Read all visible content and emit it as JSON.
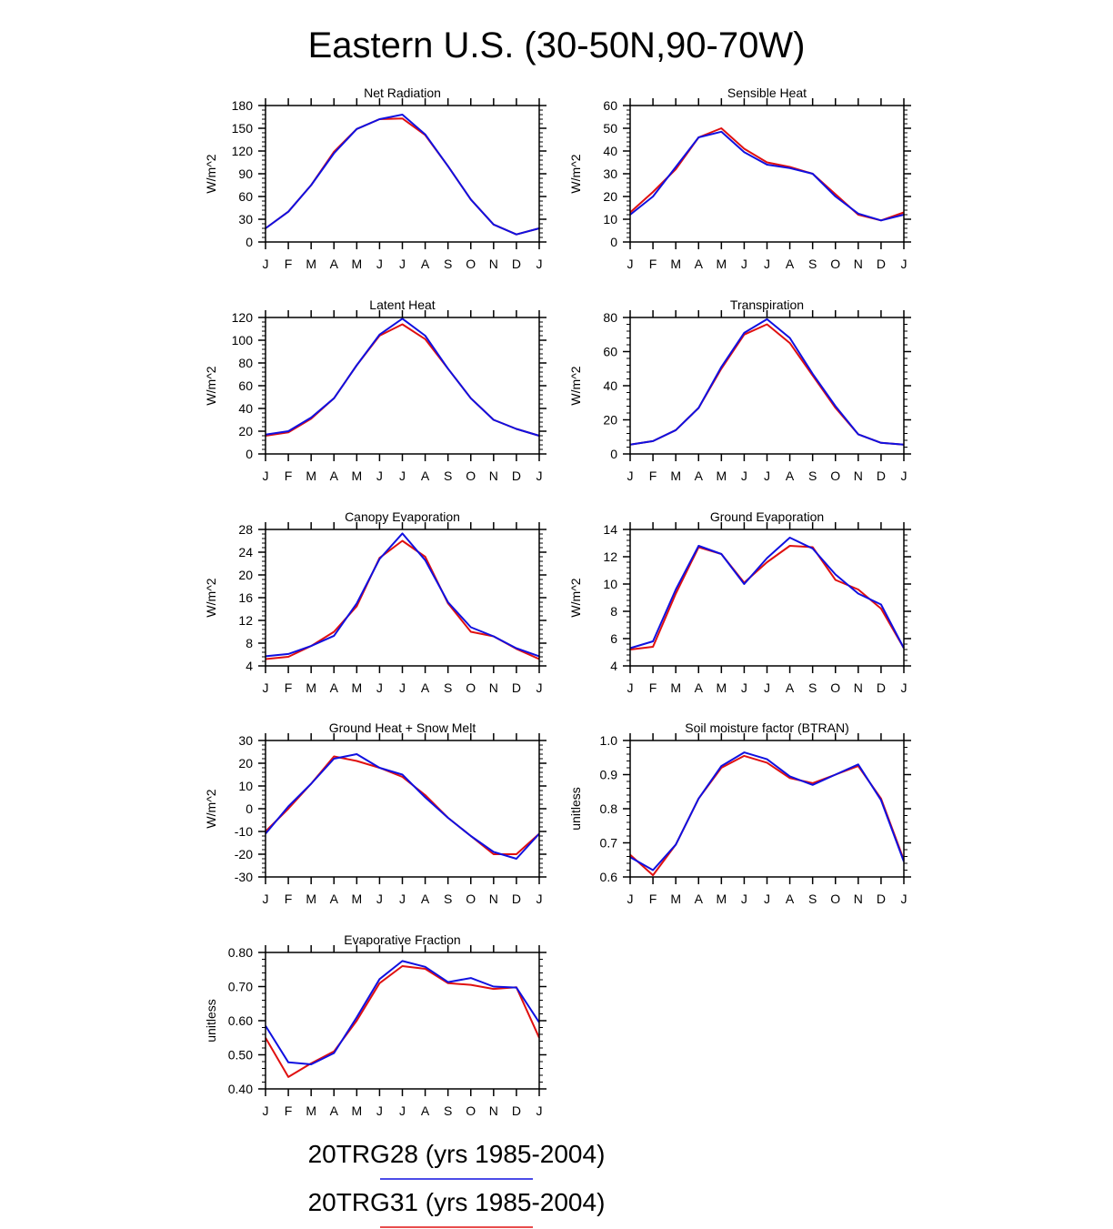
{
  "figure": {
    "title": "Eastern U.S. (30-50N,90-70W)",
    "line_colors": {
      "20TRG28": "#1010e0",
      "20TRG31": "#e01010"
    }
  },
  "legend": [
    {
      "label": "20TRG28 (yrs 1985-2004)",
      "color": "#1010e0"
    },
    {
      "label": "20TRG31 (yrs 1985-2004)",
      "color": "#e01010"
    }
  ],
  "chart_data": [
    {
      "type": "line",
      "title": "Net Radiation",
      "ylabel": "W/m^2",
      "xlabel": "",
      "categories": [
        "J",
        "F",
        "M",
        "A",
        "M",
        "J",
        "J",
        "A",
        "S",
        "O",
        "N",
        "D",
        "J"
      ],
      "ylim": [
        0,
        180
      ],
      "yticks": [
        "0",
        "30",
        "60",
        "90",
        "120",
        "150",
        "180"
      ],
      "series": [
        {
          "name": "20TRG31 (yrs 1985-2004)",
          "color": "#e01010",
          "values": [
            18,
            40,
            75,
            119,
            149,
            162,
            163,
            141,
            100,
            56,
            23,
            10,
            18
          ]
        },
        {
          "name": "20TRG28 (yrs 1985-2004)",
          "color": "#1010e0",
          "values": [
            18,
            40,
            75,
            117,
            149,
            162,
            168,
            142,
            100,
            56,
            23,
            10,
            18
          ]
        }
      ]
    },
    {
      "type": "line",
      "title": "Sensible Heat",
      "ylabel": "W/m^2",
      "xlabel": "",
      "categories": [
        "J",
        "F",
        "M",
        "A",
        "M",
        "J",
        "J",
        "A",
        "S",
        "O",
        "N",
        "D",
        "J"
      ],
      "ylim": [
        0,
        60
      ],
      "yticks": [
        "0",
        "10",
        "20",
        "30",
        "40",
        "50",
        "60"
      ],
      "series": [
        {
          "name": "20TRG31 (yrs 1985-2004)",
          "color": "#e01010",
          "values": [
            13,
            22,
            32,
            46,
            50,
            41,
            35,
            33,
            30,
            21,
            12,
            9.5,
            13
          ]
        },
        {
          "name": "20TRG28 (yrs 1985-2004)",
          "color": "#1010e0",
          "values": [
            12,
            20,
            33,
            46,
            48.5,
            39.5,
            34,
            32.5,
            30,
            20,
            12.5,
            9.5,
            12
          ]
        }
      ]
    },
    {
      "type": "line",
      "title": "Latent Heat",
      "ylabel": "W/m^2",
      "xlabel": "",
      "categories": [
        "J",
        "F",
        "M",
        "A",
        "M",
        "J",
        "J",
        "A",
        "S",
        "O",
        "N",
        "D",
        "J"
      ],
      "ylim": [
        0,
        120
      ],
      "yticks": [
        "0",
        "20",
        "40",
        "60",
        "80",
        "100",
        "120"
      ],
      "series": [
        {
          "name": "20TRG31 (yrs 1985-2004)",
          "color": "#e01010",
          "values": [
            16,
            19,
            31,
            49,
            78,
            104,
            114,
            101,
            75,
            49,
            30,
            22,
            16
          ]
        },
        {
          "name": "20TRG28 (yrs 1985-2004)",
          "color": "#1010e0",
          "values": [
            17,
            20,
            32,
            49,
            78,
            105,
            119,
            104,
            75,
            49,
            30,
            22,
            16
          ]
        }
      ]
    },
    {
      "type": "line",
      "title": "Transpiration",
      "ylabel": "W/m^2",
      "xlabel": "",
      "categories": [
        "J",
        "F",
        "M",
        "A",
        "M",
        "J",
        "J",
        "A",
        "S",
        "O",
        "N",
        "D",
        "J"
      ],
      "ylim": [
        0,
        80
      ],
      "yticks": [
        "0",
        "20",
        "40",
        "60",
        "80"
      ],
      "series": [
        {
          "name": "20TRG31 (yrs 1985-2004)",
          "color": "#e01010",
          "values": [
            5.5,
            7.5,
            14,
            27,
            50,
            70,
            76,
            65,
            46,
            27,
            11.5,
            6.5,
            5.5
          ]
        },
        {
          "name": "20TRG28 (yrs 1985-2004)",
          "color": "#1010e0",
          "values": [
            5.5,
            7.5,
            14,
            27,
            51,
            71,
            79,
            68,
            47,
            28,
            11.5,
            6.5,
            5.5
          ]
        }
      ]
    },
    {
      "type": "line",
      "title": "Canopy Evaporation",
      "ylabel": "W/m^2",
      "xlabel": "",
      "categories": [
        "J",
        "F",
        "M",
        "A",
        "M",
        "J",
        "J",
        "A",
        "S",
        "O",
        "N",
        "D",
        "J"
      ],
      "ylim": [
        4,
        28
      ],
      "yticks": [
        "4",
        "8",
        "12",
        "16",
        "20",
        "24",
        "28"
      ],
      "series": [
        {
          "name": "20TRG31 (yrs 1985-2004)",
          "color": "#e01010",
          "values": [
            5.2,
            5.6,
            7.5,
            10,
            14.5,
            23,
            26,
            23.2,
            15,
            10,
            9.2,
            7,
            5.2
          ]
        },
        {
          "name": "20TRG28 (yrs 1985-2004)",
          "color": "#1010e0",
          "values": [
            5.7,
            6.1,
            7.5,
            9.3,
            15,
            22.8,
            27.3,
            22.6,
            15.2,
            10.8,
            9.2,
            7.1,
            5.7
          ]
        }
      ]
    },
    {
      "type": "line",
      "title": "Ground Evaporation",
      "ylabel": "W/m^2",
      "xlabel": "",
      "categories": [
        "J",
        "F",
        "M",
        "A",
        "M",
        "J",
        "J",
        "A",
        "S",
        "O",
        "N",
        "D",
        "J"
      ],
      "ylim": [
        4,
        14
      ],
      "yticks": [
        "4",
        "6",
        "8",
        "10",
        "12",
        "14"
      ],
      "series": [
        {
          "name": "20TRG31 (yrs 1985-2004)",
          "color": "#e01010",
          "values": [
            5.2,
            5.4,
            9.3,
            12.7,
            12.2,
            10.1,
            11.6,
            12.8,
            12.7,
            10.3,
            9.6,
            8.2,
            5.3
          ]
        },
        {
          "name": "20TRG28 (yrs 1985-2004)",
          "color": "#1010e0",
          "values": [
            5.3,
            5.8,
            9.6,
            12.8,
            12.2,
            10.0,
            11.9,
            13.4,
            12.6,
            10.7,
            9.3,
            8.5,
            5.3
          ]
        }
      ]
    },
    {
      "type": "line",
      "title": "Ground Heat + Snow Melt",
      "ylabel": "W/m^2",
      "xlabel": "",
      "categories": [
        "J",
        "F",
        "M",
        "A",
        "M",
        "J",
        "J",
        "A",
        "S",
        "O",
        "N",
        "D",
        "J"
      ],
      "ylim": [
        -30,
        30
      ],
      "yticks": [
        "-30",
        "-20",
        "-10",
        "0",
        "10",
        "20",
        "30"
      ],
      "series": [
        {
          "name": "20TRG31 (yrs 1985-2004)",
          "color": "#e01010",
          "values": [
            -10,
            0,
            11,
            23,
            21,
            18,
            14,
            6,
            -4,
            -12,
            -20,
            -20,
            -11
          ]
        },
        {
          "name": "20TRG28 (yrs 1985-2004)",
          "color": "#1010e0",
          "values": [
            -11,
            1,
            11,
            22,
            24,
            18,
            15,
            5,
            -4,
            -12,
            -19,
            -22,
            -11
          ]
        }
      ]
    },
    {
      "type": "line",
      "title": "Soil moisture factor (BTRAN)",
      "ylabel": "unitless",
      "xlabel": "",
      "categories": [
        "J",
        "F",
        "M",
        "A",
        "M",
        "J",
        "J",
        "A",
        "S",
        "O",
        "N",
        "D",
        "J"
      ],
      "ylim": [
        0.6,
        1.0
      ],
      "yticks": [
        "0.6",
        "0.7",
        "0.8",
        "0.9",
        "1.0"
      ],
      "series": [
        {
          "name": "20TRG31 (yrs 1985-2004)",
          "color": "#e01010",
          "values": [
            0.665,
            0.605,
            0.695,
            0.83,
            0.92,
            0.955,
            0.935,
            0.89,
            0.875,
            0.9,
            0.925,
            0.83,
            0.65
          ]
        },
        {
          "name": "20TRG28 (yrs 1985-2004)",
          "color": "#1010e0",
          "values": [
            0.658,
            0.62,
            0.695,
            0.83,
            0.925,
            0.965,
            0.945,
            0.895,
            0.87,
            0.9,
            0.93,
            0.825,
            0.645
          ]
        }
      ]
    },
    {
      "type": "line",
      "title": "Evaporative Fraction",
      "ylabel": "unitless",
      "xlabel": "",
      "categories": [
        "J",
        "F",
        "M",
        "A",
        "M",
        "J",
        "J",
        "A",
        "S",
        "O",
        "N",
        "D",
        "J"
      ],
      "ylim": [
        0.4,
        0.8
      ],
      "yticks": [
        "0.40",
        "0.50",
        "0.60",
        "0.70",
        "0.80"
      ],
      "series": [
        {
          "name": "20TRG31 (yrs 1985-2004)",
          "color": "#e01010",
          "values": [
            0.55,
            0.435,
            0.475,
            0.51,
            0.6,
            0.71,
            0.76,
            0.752,
            0.71,
            0.705,
            0.693,
            0.698,
            0.55
          ]
        },
        {
          "name": "20TRG28 (yrs 1985-2004)",
          "color": "#1010e0",
          "values": [
            0.585,
            0.478,
            0.472,
            0.505,
            0.61,
            0.722,
            0.775,
            0.758,
            0.713,
            0.725,
            0.7,
            0.697,
            0.595
          ]
        }
      ]
    }
  ]
}
